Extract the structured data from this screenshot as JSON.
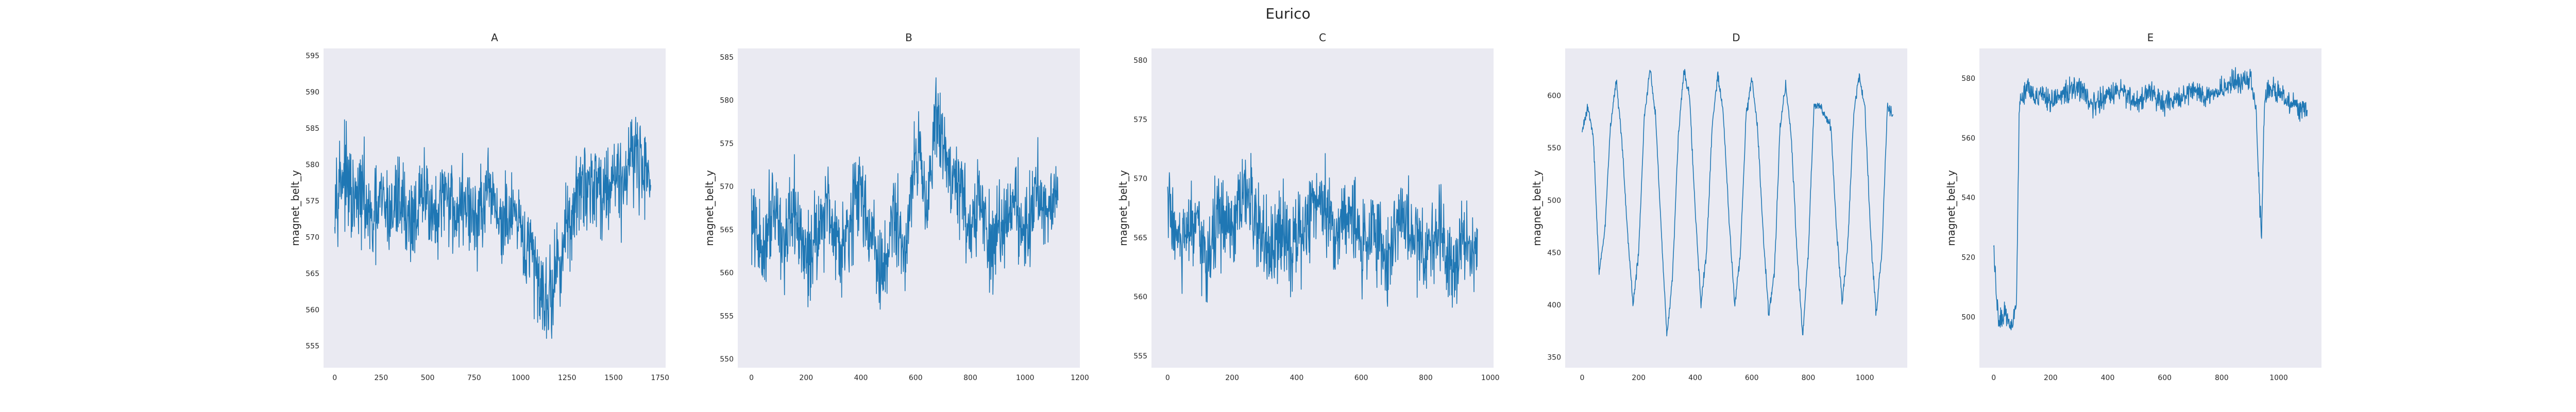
{
  "figure": {
    "title": "Eurico"
  },
  "chart_data": [
    {
      "type": "line",
      "title": "A",
      "ylabel": "magnet_belt_y",
      "xlim": [
        -60,
        1780
      ],
      "ylim": [
        552,
        596
      ],
      "xticks": [
        0,
        250,
        500,
        750,
        1000,
        1250,
        1500,
        1750
      ],
      "yticks": [
        555,
        560,
        565,
        570,
        575,
        580,
        585,
        590,
        595
      ],
      "grid": false,
      "color": "#1f77b4",
      "series": [
        {
          "x": [
            0,
            50,
            100,
            150,
            200,
            250,
            300,
            350,
            400,
            450,
            500,
            550,
            600,
            650,
            700,
            750,
            800,
            850,
            900,
            950,
            1000,
            1050,
            1100,
            1150,
            1200,
            1250,
            1300,
            1350,
            1400,
            1450,
            1500,
            1550,
            1600,
            1650,
            1700
          ],
          "values": [
            577,
            579,
            574,
            576,
            571,
            575,
            573,
            576,
            572,
            574,
            576,
            571,
            577,
            573,
            575,
            572,
            574,
            576,
            571,
            573,
            570,
            568,
            564,
            561,
            566,
            571,
            575,
            577,
            578,
            576,
            579,
            577,
            583,
            579,
            580
          ]
        }
      ]
    },
    {
      "type": "line",
      "title": "B",
      "ylabel": "magnet_belt_y",
      "xlim": [
        -50,
        1200
      ],
      "ylim": [
        549,
        586
      ],
      "xticks": [
        0,
        200,
        400,
        600,
        800,
        1000,
        1200
      ],
      "yticks": [
        550,
        555,
        560,
        565,
        570,
        575,
        580,
        585
      ],
      "grid": false,
      "color": "#1f77b4",
      "series": [
        {
          "x": [
            0,
            40,
            80,
            120,
            160,
            200,
            240,
            280,
            320,
            360,
            400,
            440,
            480,
            520,
            560,
            600,
            640,
            680,
            720,
            760,
            800,
            840,
            880,
            920,
            960,
            1000,
            1040,
            1080,
            1120
          ],
          "values": [
            566,
            562,
            569,
            563,
            567,
            561,
            565,
            568,
            563,
            566,
            570,
            564,
            559,
            567,
            562,
            575,
            569,
            578,
            572,
            570,
            565,
            568,
            562,
            566,
            569,
            564,
            570,
            567,
            571
          ]
        }
      ]
    },
    {
      "type": "line",
      "title": "C",
      "ylabel": "magnet_belt_y",
      "xlim": [
        -50,
        1010
      ],
      "ylim": [
        554,
        581
      ],
      "xticks": [
        0,
        200,
        400,
        600,
        800,
        1000
      ],
      "yticks": [
        555,
        560,
        565,
        570,
        575,
        580
      ],
      "grid": false,
      "color": "#1f77b4",
      "series": [
        {
          "x": [
            0,
            40,
            80,
            120,
            160,
            200,
            240,
            280,
            320,
            360,
            400,
            440,
            480,
            520,
            560,
            600,
            640,
            680,
            720,
            760,
            800,
            840,
            880,
            920,
            960
          ],
          "values": [
            568,
            564,
            566,
            563,
            567,
            565,
            569,
            566,
            563,
            566,
            564,
            567,
            569,
            565,
            568,
            564,
            566,
            563,
            567,
            565,
            564,
            566,
            563,
            565,
            564
          ]
        }
      ]
    },
    {
      "type": "line",
      "title": "D",
      "ylabel": "magnet_belt_y",
      "xlim": [
        -60,
        1150
      ],
      "ylim": [
        340,
        645
      ],
      "xticks": [
        0,
        200,
        400,
        600,
        800,
        1000
      ],
      "yticks": [
        350,
        400,
        450,
        500,
        550,
        600
      ],
      "grid": false,
      "color": "#1f77b4",
      "series": [
        {
          "x": [
            0,
            20,
            40,
            60,
            80,
            100,
            120,
            140,
            160,
            180,
            200,
            220,
            240,
            260,
            280,
            300,
            320,
            340,
            360,
            380,
            400,
            420,
            440,
            460,
            480,
            500,
            520,
            540,
            560,
            580,
            600,
            620,
            640,
            660,
            680,
            700,
            720,
            740,
            760,
            780,
            800,
            820,
            840,
            860,
            880,
            900,
            920,
            940,
            960,
            980,
            1000,
            1020,
            1040,
            1060,
            1080,
            1100
          ],
          "values": [
            565,
            590,
            560,
            430,
            470,
            570,
            615,
            560,
            470,
            400,
            450,
            580,
            625,
            580,
            470,
            370,
            430,
            560,
            625,
            600,
            490,
            400,
            450,
            570,
            620,
            580,
            480,
            400,
            450,
            580,
            615,
            570,
            470,
            390,
            430,
            570,
            610,
            560,
            450,
            370,
            450,
            590,
            590,
            580,
            570,
            470,
            400,
            460,
            580,
            620,
            590,
            470,
            390,
            450,
            590,
            580
          ]
        }
      ]
    },
    {
      "type": "line",
      "title": "E",
      "ylabel": "magnet_belt_y",
      "xlim": [
        -50,
        1150
      ],
      "ylim": [
        483,
        590
      ],
      "xticks": [
        0,
        200,
        400,
        600,
        800,
        1000
      ],
      "yticks": [
        500,
        520,
        540,
        560,
        580
      ],
      "grid": false,
      "color": "#1f77b4",
      "series": [
        {
          "x": [
            0,
            10,
            20,
            40,
            60,
            80,
            90,
            100,
            120,
            150,
            200,
            250,
            300,
            350,
            400,
            450,
            500,
            550,
            600,
            650,
            700,
            750,
            800,
            850,
            900,
            920,
            930,
            940,
            950,
            980,
            1000,
            1040,
            1080,
            1100
          ],
          "values": [
            525,
            505,
            498,
            502,
            497,
            505,
            570,
            574,
            578,
            574,
            572,
            575,
            577,
            571,
            574,
            576,
            572,
            575,
            571,
            573,
            576,
            573,
            577,
            579,
            580,
            570,
            545,
            527,
            574,
            577,
            575,
            572,
            570,
            568
          ]
        }
      ]
    }
  ]
}
